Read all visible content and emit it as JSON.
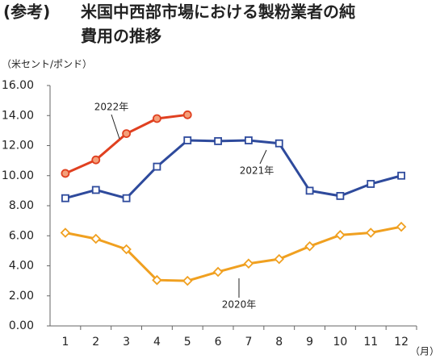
{
  "chart_data": {
    "type": "line",
    "title_tag": "(参考)",
    "title": [
      "米国中西部市場における製粉業者の純",
      "費用の推移"
    ],
    "y_label": "（米セント/ポンド）",
    "x_label": "（月）",
    "categories": [
      "1",
      "2",
      "3",
      "4",
      "5",
      "6",
      "7",
      "8",
      "9",
      "10",
      "11",
      "12"
    ],
    "ylim": [
      0,
      16
    ],
    "yticks": [
      {
        "value": 0,
        "label": "0.00"
      },
      {
        "value": 2,
        "label": "2.00"
      },
      {
        "value": 4,
        "label": "4.00"
      },
      {
        "value": 6,
        "label": "6.00"
      },
      {
        "value": 8,
        "label": "8.00"
      },
      {
        "value": 10,
        "label": "10.00"
      },
      {
        "value": 12,
        "label": "12.00"
      },
      {
        "value": 14,
        "label": "14.00"
      },
      {
        "value": 16,
        "label": "16.00"
      }
    ],
    "grid": false,
    "series": [
      {
        "name": "2020年",
        "color": "#f0a020",
        "marker": "diamond",
        "values": [
          6.2,
          5.8,
          5.1,
          3.05,
          3.0,
          3.6,
          4.15,
          4.45,
          5.3,
          6.05,
          6.2,
          6.6
        ]
      },
      {
        "name": "2021年",
        "color": "#2e4a9c",
        "marker": "square",
        "values": [
          8.5,
          9.05,
          8.5,
          10.6,
          12.35,
          12.3,
          12.35,
          12.15,
          9.0,
          8.65,
          9.45,
          10.0
        ]
      },
      {
        "name": "2022年",
        "color": "#e04020",
        "marker": "circle",
        "values": [
          10.15,
          11.05,
          12.8,
          13.8,
          14.05,
          null,
          null,
          null,
          null,
          null,
          null,
          null
        ]
      }
    ]
  }
}
